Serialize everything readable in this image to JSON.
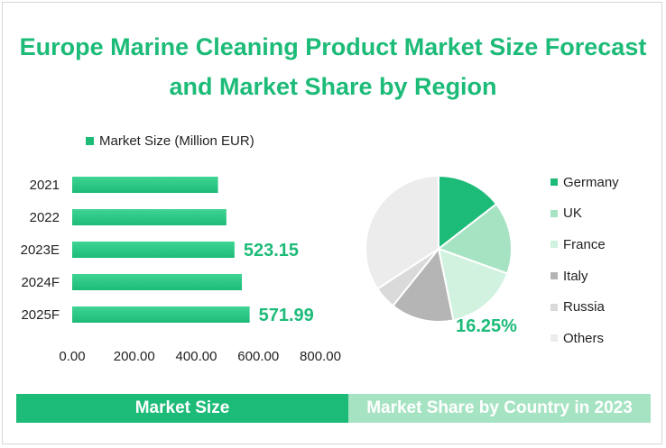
{
  "title": {
    "line1": "Europe Marine Cleaning Product Market Size Forecast",
    "line2": "and Market Share by Region"
  },
  "colors": {
    "accent": "#1dbb78",
    "accent_light": "#a6e3c3"
  },
  "chart_data": [
    {
      "type": "bar",
      "orientation": "horizontal",
      "categories": [
        "2021",
        "2022",
        "2023E",
        "2024F",
        "2025F"
      ],
      "series": [
        {
          "name": "Market Size (Million EUR)",
          "values": [
            470,
            497,
            523.15,
            547,
            571.99
          ]
        }
      ],
      "data_labels": [
        {
          "category": "2023E",
          "text": "523.15"
        },
        {
          "category": "2025F",
          "text": "571.99"
        }
      ],
      "xlim": [
        0,
        800
      ],
      "x_ticks": [
        "0.00",
        "200.00",
        "400.00",
        "600.00",
        "800.00"
      ],
      "legend_position": "top",
      "grid": false,
      "color": "#1dbb78"
    },
    {
      "type": "pie",
      "labels": [
        "Germany",
        "UK",
        "France",
        "Italy",
        "Russia",
        "Others"
      ],
      "values": [
        14.5,
        16.0,
        16.25,
        14.0,
        5.0,
        34.25
      ],
      "colors": [
        "#1dbb78",
        "#a6e3c3",
        "#d2f2e0",
        "#b5b5b5",
        "#dadada",
        "#ececec"
      ],
      "data_labels": [
        {
          "label": "France",
          "text": "16.25%"
        }
      ],
      "legend_position": "right"
    }
  ],
  "footer": {
    "left": "Market Size",
    "right": "Market Share by Country in 2023"
  }
}
